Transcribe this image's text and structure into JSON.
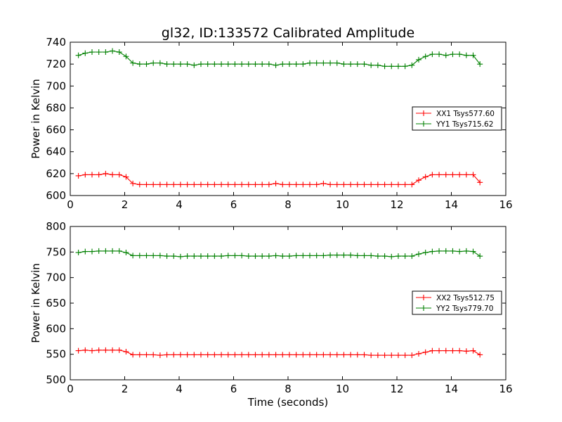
{
  "title": "gl32, ID:133572 Calibrated Amplitude",
  "colors": {
    "red": "#ff0000",
    "green": "#008000"
  },
  "chart_data": [
    {
      "type": "line",
      "title": "gl32, ID:133572 Calibrated Amplitude",
      "xlabel": "",
      "ylabel": "Power in Kelvin",
      "xlim": [
        0,
        16
      ],
      "ylim": [
        600,
        740
      ],
      "xticks": [
        0,
        2,
        4,
        6,
        8,
        10,
        12,
        14,
        16
      ],
      "yticks": [
        600,
        620,
        640,
        660,
        680,
        700,
        720,
        740
      ],
      "grid": false,
      "legend_position": "center-right",
      "x": [
        0.3,
        0.55,
        0.8,
        1.05,
        1.3,
        1.55,
        1.8,
        2.05,
        2.3,
        2.55,
        2.8,
        3.05,
        3.3,
        3.55,
        3.8,
        4.05,
        4.3,
        4.55,
        4.8,
        5.05,
        5.3,
        5.55,
        5.8,
        6.05,
        6.3,
        6.55,
        6.8,
        7.05,
        7.3,
        7.55,
        7.8,
        8.05,
        8.3,
        8.55,
        8.8,
        9.05,
        9.3,
        9.55,
        9.8,
        10.05,
        10.3,
        10.55,
        10.8,
        11.05,
        11.3,
        11.55,
        11.8,
        12.05,
        12.3,
        12.55,
        12.8,
        13.05,
        13.3,
        13.55,
        13.8,
        14.05,
        14.3,
        14.55,
        14.8,
        15.05
      ],
      "series": [
        {
          "name": "XX1 Tsys577.60",
          "color": "#ff0000",
          "values": [
            618,
            619,
            619,
            619,
            620,
            619,
            619,
            617,
            611,
            610,
            610,
            610,
            610,
            610,
            610,
            610,
            610,
            610,
            610,
            610,
            610,
            610,
            610,
            610,
            610,
            610,
            610,
            610,
            610,
            611,
            610,
            610,
            610,
            610,
            610,
            610,
            611,
            610,
            610,
            610,
            610,
            610,
            610,
            610,
            610,
            610,
            610,
            610,
            610,
            610,
            614,
            617,
            619,
            619,
            619,
            619,
            619,
            619,
            619,
            612
          ]
        },
        {
          "name": "YY1 Tsys715.62",
          "color": "#008000",
          "values": [
            728,
            730,
            731,
            731,
            731,
            732,
            731,
            727,
            721,
            720,
            720,
            721,
            721,
            720,
            720,
            720,
            720,
            719,
            720,
            720,
            720,
            720,
            720,
            720,
            720,
            720,
            720,
            720,
            720,
            719,
            720,
            720,
            720,
            720,
            721,
            721,
            721,
            721,
            721,
            720,
            720,
            720,
            720,
            719,
            719,
            718,
            718,
            718,
            718,
            719,
            724,
            727,
            729,
            729,
            728,
            729,
            729,
            728,
            728,
            720
          ]
        }
      ]
    },
    {
      "type": "line",
      "title": "",
      "xlabel": "Time (seconds)",
      "ylabel": "Power in Kelvin",
      "xlim": [
        0,
        16
      ],
      "ylim": [
        500,
        800
      ],
      "xticks": [
        0,
        2,
        4,
        6,
        8,
        10,
        12,
        14,
        16
      ],
      "yticks": [
        500,
        550,
        600,
        650,
        700,
        750,
        800
      ],
      "grid": false,
      "legend_position": "center-right",
      "x": [
        0.3,
        0.55,
        0.8,
        1.05,
        1.3,
        1.55,
        1.8,
        2.05,
        2.3,
        2.55,
        2.8,
        3.05,
        3.3,
        3.55,
        3.8,
        4.05,
        4.3,
        4.55,
        4.8,
        5.05,
        5.3,
        5.55,
        5.8,
        6.05,
        6.3,
        6.55,
        6.8,
        7.05,
        7.3,
        7.55,
        7.8,
        8.05,
        8.3,
        8.55,
        8.8,
        9.05,
        9.3,
        9.55,
        9.8,
        10.05,
        10.3,
        10.55,
        10.8,
        11.05,
        11.3,
        11.55,
        11.8,
        12.05,
        12.3,
        12.55,
        12.8,
        13.05,
        13.3,
        13.55,
        13.8,
        14.05,
        14.3,
        14.55,
        14.8,
        15.05
      ],
      "series": [
        {
          "name": "XX2 Tsys512.75",
          "color": "#ff0000",
          "values": [
            557,
            558,
            557,
            558,
            558,
            558,
            558,
            555,
            549,
            549,
            549,
            549,
            548,
            549,
            549,
            549,
            549,
            549,
            549,
            549,
            549,
            549,
            549,
            549,
            549,
            549,
            549,
            549,
            549,
            549,
            549,
            549,
            549,
            549,
            549,
            549,
            549,
            549,
            549,
            549,
            549,
            549,
            549,
            548,
            548,
            548,
            548,
            548,
            548,
            548,
            551,
            554,
            557,
            557,
            557,
            557,
            557,
            556,
            557,
            549
          ]
        },
        {
          "name": "YY2 Tsys779.70",
          "color": "#008000",
          "values": [
            749,
            751,
            751,
            752,
            752,
            752,
            752,
            749,
            743,
            743,
            743,
            743,
            743,
            742,
            742,
            741,
            742,
            742,
            742,
            742,
            742,
            742,
            743,
            743,
            743,
            742,
            742,
            742,
            742,
            743,
            742,
            742,
            743,
            743,
            743,
            743,
            743,
            744,
            744,
            744,
            744,
            743,
            743,
            743,
            742,
            742,
            741,
            742,
            742,
            742,
            746,
            749,
            751,
            752,
            752,
            752,
            751,
            752,
            751,
            742
          ]
        }
      ]
    }
  ]
}
